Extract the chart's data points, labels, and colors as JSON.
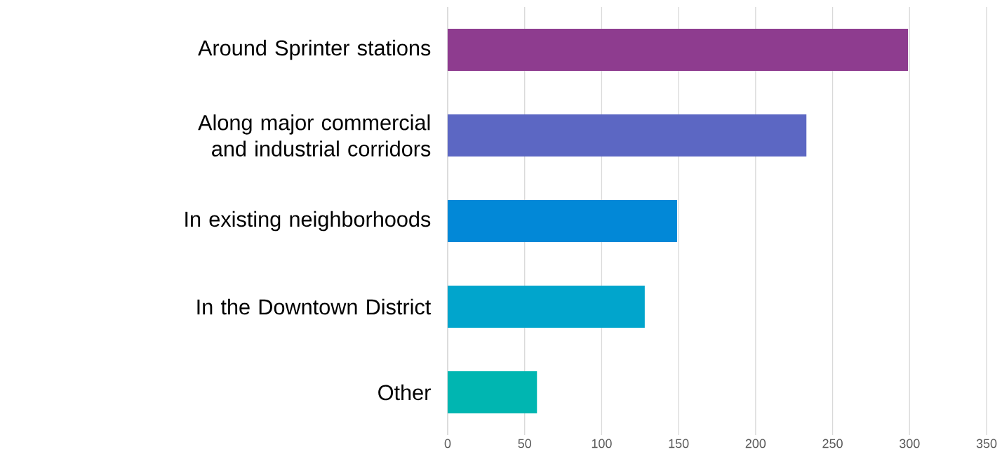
{
  "chart_data": {
    "type": "bar",
    "orientation": "horizontal",
    "categories": [
      "Around Sprinter stations",
      "Along major commercial and industrial corridors",
      "In existing neighborhoods",
      "In the Downtown District",
      "Other"
    ],
    "values": [
      299,
      233,
      149,
      128,
      58
    ],
    "colors": [
      "#8e3c8f",
      "#5c67c3",
      "#0288d7",
      "#01a5cc",
      "#00b6b1"
    ],
    "xlim": [
      0,
      350
    ],
    "xticks": [
      0,
      50,
      100,
      150,
      200,
      250,
      300,
      350
    ],
    "grid": "x"
  }
}
